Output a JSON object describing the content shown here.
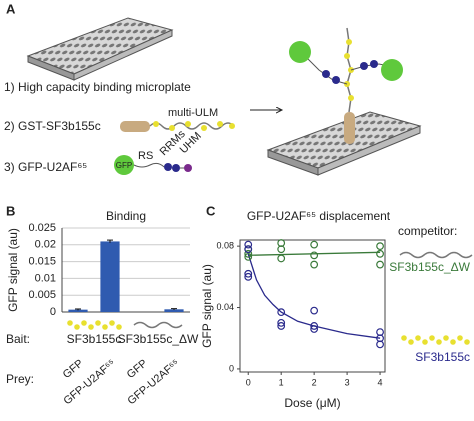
{
  "schematic": {
    "panel_label": "A",
    "steps": [
      "1) High capacity binding microplate",
      "2) GST-SF3b155c",
      "3) GFP-U2AF⁶⁵"
    ],
    "labels": {
      "multi_ulm": "multi-ULM",
      "gfp": "GFP",
      "rs": "RS",
      "rrms": "RRMs",
      "uhm": "UHM"
    }
  },
  "chart_data": [
    {
      "type": "bar",
      "panel_label": "B",
      "title": "Binding",
      "y_label": "GFP signal (au)",
      "categories": [
        "GFP",
        "GFP-U2AF⁶⁵",
        "GFP",
        "GFP-U2AF⁶⁵"
      ],
      "values": [
        0.0007,
        0.021,
        0,
        0.0008
      ],
      "errors": [
        0.0002,
        0.0004,
        0,
        0.0002
      ],
      "color": "#2f5bb0",
      "ylim": [
        0,
        0.025
      ],
      "yticks": [
        0,
        0.005,
        0.01,
        0.015,
        0.02,
        0.025
      ],
      "grid": true,
      "bait_label": "Bait:",
      "prey_label": "Prey:",
      "groups": [
        "SF3b155c",
        "SF3b155c_ΔW"
      ]
    },
    {
      "type": "scatter",
      "panel_label": "C",
      "title": "GFP-U2AF⁶⁵ displacement",
      "x_label": "Dose (μM)",
      "y_label": "GFP signal (au)",
      "legend_title": "competitor:",
      "xlim": [
        -0.25,
        4.15
      ],
      "xticks": [
        0,
        1,
        2,
        3,
        4
      ],
      "ylim": [
        -0.002,
        0.084
      ],
      "yticks": [
        0,
        0.04,
        0.08
      ],
      "series": [
        {
          "name": "SF3b155c_ΔW",
          "color": "#3a7a3a",
          "x": [
            0,
            0,
            0,
            1,
            1,
            1,
            2,
            2,
            2,
            4,
            4,
            4
          ],
          "values": [
            0.078,
            0.075,
            0.073,
            0.082,
            0.078,
            0.072,
            0.081,
            0.074,
            0.068,
            0.08,
            0.075,
            0.068
          ]
        },
        {
          "name": "SF3b155c",
          "color": "#2a2a8c",
          "x": [
            0,
            0,
            0,
            0,
            1,
            1,
            1,
            2,
            2,
            2,
            4,
            4,
            4
          ],
          "values": [
            0.081,
            0.078,
            0.062,
            0.06,
            0.037,
            0.03,
            0.028,
            0.038,
            0.028,
            0.026,
            0.024,
            0.02,
            0.016
          ]
        }
      ],
      "fits": [
        {
          "color": "#3a7a3a",
          "x": [
            0,
            4
          ],
          "values": [
            0.074,
            0.076
          ]
        },
        {
          "color": "#2a2a8c",
          "x": [
            0,
            0.25,
            0.5,
            0.75,
            1,
            1.5,
            2,
            3,
            4
          ],
          "values": [
            0.075,
            0.058,
            0.048,
            0.042,
            0.037,
            0.031,
            0.028,
            0.023,
            0.02
          ]
        }
      ]
    }
  ]
}
